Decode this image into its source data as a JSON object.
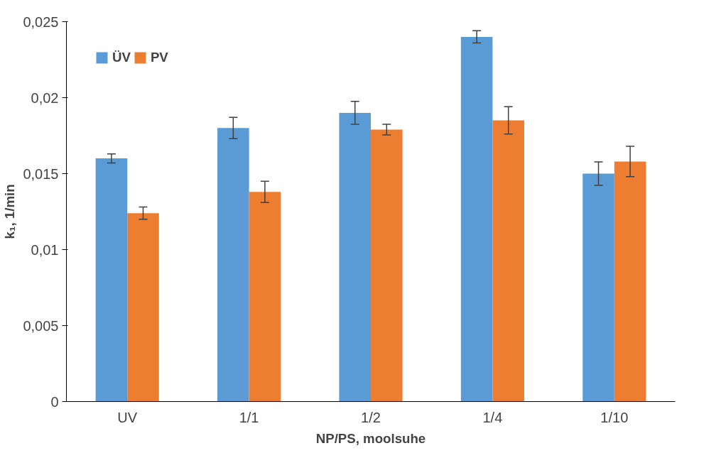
{
  "chart_data": {
    "type": "bar",
    "xlabel": "NP/PS, moolsuhe",
    "ylabel": "k₁, 1/min",
    "categories": [
      "UV",
      "1/1",
      "1/2",
      "1/4",
      "1/10"
    ],
    "series": [
      {
        "name": "ÜV",
        "color": "#5b9bd5",
        "values": [
          0.016,
          0.018,
          0.019,
          0.024,
          0.015
        ],
        "errors": [
          0.0003,
          0.0007,
          0.00075,
          0.0004,
          0.00077
        ]
      },
      {
        "name": "PV",
        "color": "#ed7d31",
        "values": [
          0.0124,
          0.0138,
          0.0179,
          0.0185,
          0.0158
        ],
        "errors": [
          0.0004,
          0.0007,
          0.00035,
          0.0009,
          0.001
        ]
      }
    ],
    "ylim": [
      0,
      0.025
    ],
    "yticks": [
      {
        "value": 0,
        "label": "0"
      },
      {
        "value": 0.005,
        "label": "0,005"
      },
      {
        "value": 0.01,
        "label": "0,01"
      },
      {
        "value": 0.015,
        "label": "0,015"
      },
      {
        "value": 0.02,
        "label": "0,02"
      },
      {
        "value": 0.025,
        "label": "0,025"
      }
    ],
    "legend": "top left",
    "grid": false
  }
}
